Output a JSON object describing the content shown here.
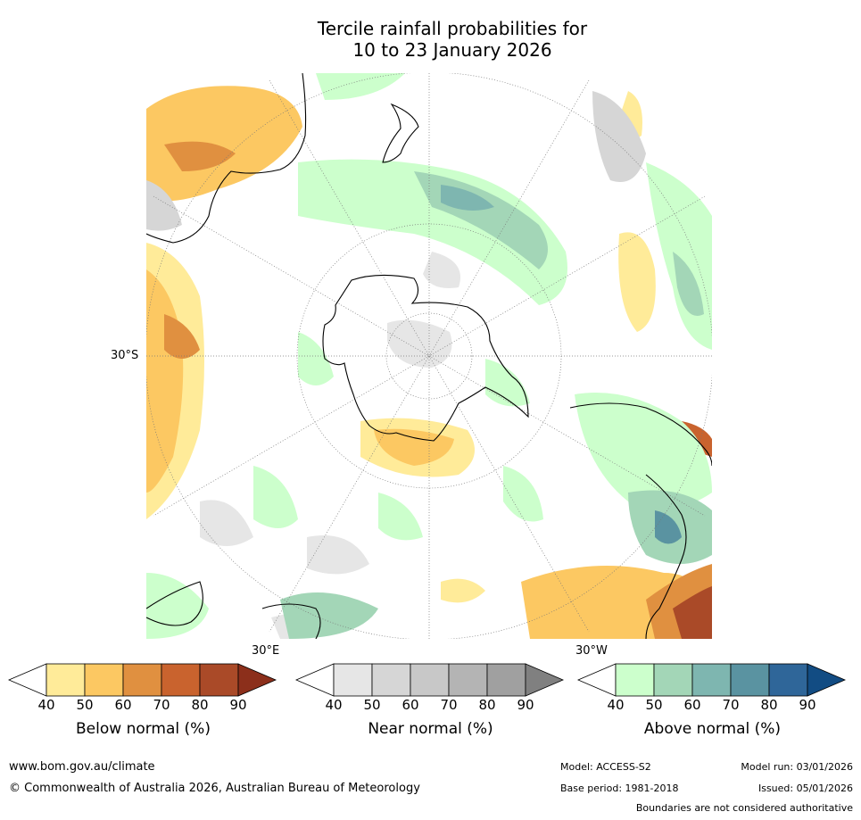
{
  "title_line1": "Tercile rainfall probabilities for",
  "title_line2": "10 to 23 January 2026",
  "labels": {
    "lat_30s": "30°S",
    "lon_30e": "30°E",
    "lon_30w": "30°W"
  },
  "legend": {
    "ticks": [
      "40",
      "50",
      "60",
      "70",
      "80",
      "90"
    ],
    "below": {
      "title": "Below normal (%)",
      "colors": [
        "#ffffff",
        "#ffeb99",
        "#fcc862",
        "#e09040",
        "#c9632e",
        "#aa4a28",
        "#8c2f1b"
      ]
    },
    "near": {
      "title": "Near normal (%)",
      "colors": [
        "#ffffff",
        "#e6e6e6",
        "#d6d6d6",
        "#c8c8c8",
        "#b4b4b4",
        "#a0a0a0",
        "#808080"
      ]
    },
    "above": {
      "title": "Above normal (%)",
      "colors": [
        "#ffffff",
        "#ccffcc",
        "#a3d6b7",
        "#7eb6b0",
        "#5a93a1",
        "#2f6699",
        "#124c83"
      ]
    }
  },
  "footer": {
    "website": "www.bom.gov.au/climate",
    "copyright": "© Commonwealth of Australia 2026, Australian Bureau of Meteorology",
    "model": "Model: ACCESS-S2",
    "base_period": "Base period: 1981-2018",
    "model_run": "Model run: 03/01/2026",
    "issued": "Issued: 05/01/2026",
    "disclaimer": "Boundaries are not considered authoritative"
  }
}
